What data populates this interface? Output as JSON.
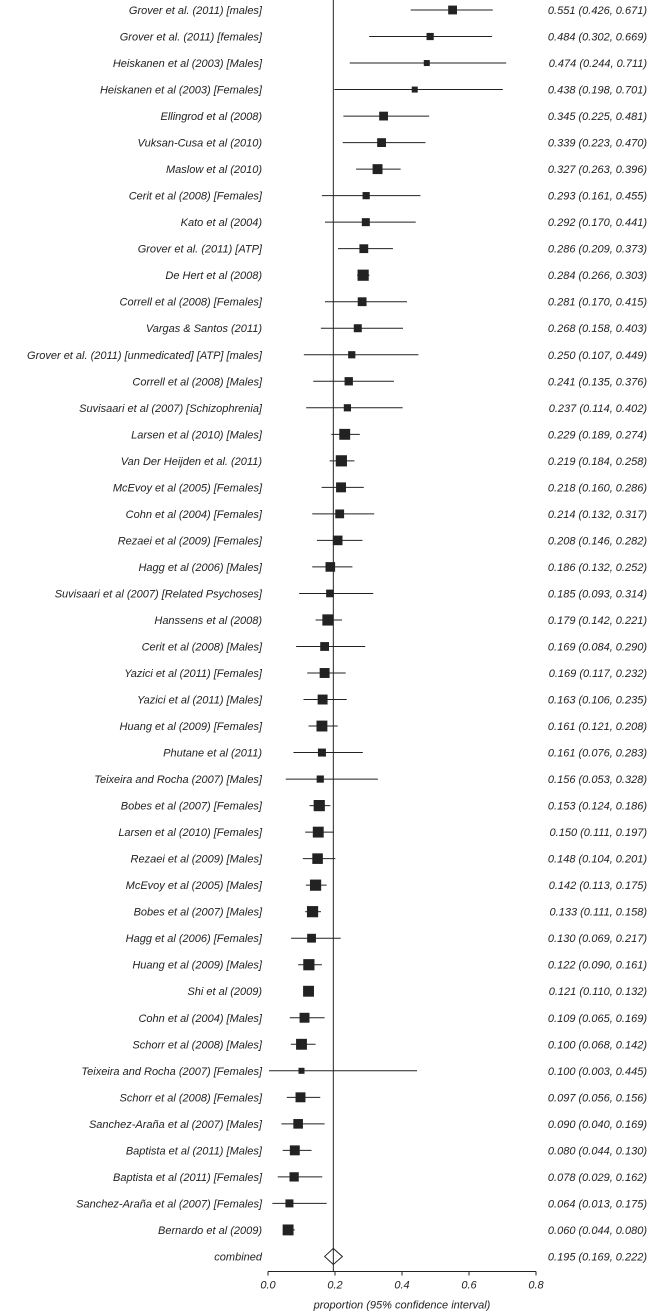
{
  "chart_data": {
    "type": "forest",
    "xlabel": "proportion (95% confidence interval)",
    "xlim": [
      0.0,
      0.8
    ],
    "xticks": [
      "0.0",
      "0.2",
      "0.4",
      "0.6",
      "0.8"
    ],
    "reference_line": 0.195,
    "grid": false,
    "rows": [
      {
        "study": "Grover et al. (2011) [males]",
        "est": 0.551,
        "lo": 0.426,
        "hi": 0.671,
        "ci_text": "0.551 (0.426, 0.671)",
        "w": 0.55
      },
      {
        "study": "Grover et al. (2011) [females]",
        "est": 0.484,
        "lo": 0.302,
        "hi": 0.669,
        "ci_text": "0.484 (0.302, 0.669)",
        "w": 0.45
      },
      {
        "study": "Heiskanen et al (2003) [Males]",
        "est": 0.474,
        "lo": 0.244,
        "hi": 0.711,
        "ci_text": "0.474 (0.244, 0.711)",
        "w": 0.35
      },
      {
        "study": "Heiskanen et al (2003) [Females]",
        "est": 0.438,
        "lo": 0.198,
        "hi": 0.701,
        "ci_text": "0.438 (0.198, 0.701)",
        "w": 0.33
      },
      {
        "study": "Ellingrod et al (2008)",
        "est": 0.345,
        "lo": 0.225,
        "hi": 0.481,
        "ci_text": "0.345 (0.225, 0.481)",
        "w": 0.55
      },
      {
        "study": "Vuksan-Cusa et al (2010)",
        "est": 0.339,
        "lo": 0.223,
        "hi": 0.47,
        "ci_text": "0.339 (0.223, 0.470)",
        "w": 0.55
      },
      {
        "study": "Maslow et al (2010)",
        "est": 0.327,
        "lo": 0.263,
        "hi": 0.396,
        "ci_text": "0.327 (0.263, 0.396)",
        "w": 0.62
      },
      {
        "study": "Cerit et al (2008) [Females]",
        "est": 0.293,
        "lo": 0.161,
        "hi": 0.455,
        "ci_text": "0.293 (0.161, 0.455)",
        "w": 0.45
      },
      {
        "study": "Kato et al (2004)",
        "est": 0.292,
        "lo": 0.17,
        "hi": 0.441,
        "ci_text": "0.292 (0.170, 0.441)",
        "w": 0.5
      },
      {
        "study": "Grover et al. (2011) [ATP]",
        "est": 0.286,
        "lo": 0.209,
        "hi": 0.373,
        "ci_text": "0.286 (0.209, 0.373)",
        "w": 0.55
      },
      {
        "study": "De Hert et al (2008)",
        "est": 0.284,
        "lo": 0.266,
        "hi": 0.303,
        "ci_text": "0.284 (0.266, 0.303)",
        "w": 0.7
      },
      {
        "study": "Correll  et al (2008) [Females]",
        "est": 0.281,
        "lo": 0.17,
        "hi": 0.415,
        "ci_text": "0.281 (0.170, 0.415)",
        "w": 0.55
      },
      {
        "study": "Vargas & Santos (2011)",
        "est": 0.268,
        "lo": 0.158,
        "hi": 0.403,
        "ci_text": "0.268 (0.158, 0.403)",
        "w": 0.5
      },
      {
        "study": "Grover et al. (2011) [unmedicated] [ATP] [males]",
        "est": 0.25,
        "lo": 0.107,
        "hi": 0.449,
        "ci_text": "0.250 (0.107, 0.449)",
        "w": 0.45
      },
      {
        "study": "Correll  et al (2008) [Males]",
        "est": 0.241,
        "lo": 0.135,
        "hi": 0.376,
        "ci_text": "0.241 (0.135, 0.376)",
        "w": 0.52
      },
      {
        "study": "Suvisaari et al (2007) [Schizophrenia]",
        "est": 0.237,
        "lo": 0.114,
        "hi": 0.402,
        "ci_text": "0.237 (0.114, 0.402)",
        "w": 0.45
      },
      {
        "study": "Larsen et al (2010) [Males]",
        "est": 0.229,
        "lo": 0.189,
        "hi": 0.274,
        "ci_text": "0.229 (0.189, 0.274)",
        "w": 0.68
      },
      {
        "study": "Van Der Heijden et al. (2011)",
        "est": 0.219,
        "lo": 0.184,
        "hi": 0.258,
        "ci_text": "0.219 (0.184, 0.258)",
        "w": 0.7
      },
      {
        "study": "McEvoy et al (2005) [Females]",
        "est": 0.218,
        "lo": 0.16,
        "hi": 0.286,
        "ci_text": "0.218 (0.160, 0.286)",
        "w": 0.62
      },
      {
        "study": "Cohn et al (2004) [Females]",
        "est": 0.214,
        "lo": 0.132,
        "hi": 0.317,
        "ci_text": "0.214 (0.132, 0.317)",
        "w": 0.55
      },
      {
        "study": "Rezaei et al (2009) [Females]",
        "est": 0.208,
        "lo": 0.146,
        "hi": 0.282,
        "ci_text": "0.208 (0.146, 0.282)",
        "w": 0.6
      },
      {
        "study": "Hagg et al (2006) [Males]",
        "est": 0.186,
        "lo": 0.132,
        "hi": 0.252,
        "ci_text": "0.186 (0.132, 0.252)",
        "w": 0.6
      },
      {
        "study": "Suvisaari et al (2007) [Related Psychoses]",
        "est": 0.185,
        "lo": 0.093,
        "hi": 0.314,
        "ci_text": "0.185 (0.093, 0.314)",
        "w": 0.48
      },
      {
        "study": "Hanssens et al (2008)",
        "est": 0.179,
        "lo": 0.142,
        "hi": 0.221,
        "ci_text": "0.179 (0.142, 0.221)",
        "w": 0.7
      },
      {
        "study": "Cerit et al (2008) [Males]",
        "est": 0.169,
        "lo": 0.084,
        "hi": 0.29,
        "ci_text": "0.169 (0.084, 0.290)",
        "w": 0.55
      },
      {
        "study": "Yazici et al (2011) [Females]",
        "est": 0.169,
        "lo": 0.117,
        "hi": 0.232,
        "ci_text": "0.169 (0.117, 0.232)",
        "w": 0.62
      },
      {
        "study": "Yazici et al (2011) [Males]",
        "est": 0.163,
        "lo": 0.106,
        "hi": 0.235,
        "ci_text": "0.163 (0.106, 0.235)",
        "w": 0.62
      },
      {
        "study": "Huang et al (2009) [Females]",
        "est": 0.161,
        "lo": 0.121,
        "hi": 0.208,
        "ci_text": "0.161 (0.121, 0.208)",
        "w": 0.68
      },
      {
        "study": "Phutane et al (2011)",
        "est": 0.161,
        "lo": 0.076,
        "hi": 0.283,
        "ci_text": "0.161 (0.076, 0.283)",
        "w": 0.5
      },
      {
        "study": "Teixeira and Rocha (2007) [Males]",
        "est": 0.156,
        "lo": 0.053,
        "hi": 0.328,
        "ci_text": "0.156 (0.053, 0.328)",
        "w": 0.45
      },
      {
        "study": "Bobes et al (2007) [Females]",
        "est": 0.153,
        "lo": 0.124,
        "hi": 0.186,
        "ci_text": "0.153 (0.124, 0.186)",
        "w": 0.7
      },
      {
        "study": "Larsen et al (2010) [Females]",
        "est": 0.15,
        "lo": 0.111,
        "hi": 0.197,
        "ci_text": "0.150 (0.111, 0.197)",
        "w": 0.68
      },
      {
        "study": "Rezaei et al (2009) [Males]",
        "est": 0.148,
        "lo": 0.104,
        "hi": 0.201,
        "ci_text": "0.148 (0.104, 0.201)",
        "w": 0.66
      },
      {
        "study": "McEvoy et al (2005) [Males]",
        "est": 0.142,
        "lo": 0.113,
        "hi": 0.175,
        "ci_text": "0.142 (0.113, 0.175)",
        "w": 0.7
      },
      {
        "study": "Bobes et al (2007) [Males]",
        "est": 0.133,
        "lo": 0.111,
        "hi": 0.158,
        "ci_text": "0.133 (0.111, 0.158)",
        "w": 0.7
      },
      {
        "study": "Hagg et al (2006) [Females]",
        "est": 0.13,
        "lo": 0.069,
        "hi": 0.217,
        "ci_text": "0.130 (0.069, 0.217)",
        "w": 0.55
      },
      {
        "study": "Huang et al (2009) [Males]",
        "est": 0.122,
        "lo": 0.09,
        "hi": 0.161,
        "ci_text": "0.122 (0.090, 0.161)",
        "w": 0.7
      },
      {
        "study": "Shi et al (2009)",
        "est": 0.121,
        "lo": 0.11,
        "hi": 0.132,
        "ci_text": "0.121 (0.110, 0.132)",
        "w": 0.68
      },
      {
        "study": "Cohn et al (2004) [Males]",
        "est": 0.109,
        "lo": 0.065,
        "hi": 0.169,
        "ci_text": "0.109 (0.065, 0.169)",
        "w": 0.62
      },
      {
        "study": "Schorr et al (2008) [Males]",
        "est": 0.1,
        "lo": 0.068,
        "hi": 0.142,
        "ci_text": "0.100 (0.068, 0.142)",
        "w": 0.68
      },
      {
        "study": "Teixeira and Rocha (2007) [Females]",
        "est": 0.1,
        "lo": 0.003,
        "hi": 0.445,
        "ci_text": "0.100 (0.003, 0.445)",
        "w": 0.3
      },
      {
        "study": "Schorr et al (2008) [Females]",
        "est": 0.097,
        "lo": 0.056,
        "hi": 0.156,
        "ci_text": "0.097 (0.056, 0.156)",
        "w": 0.62
      },
      {
        "study": "Sanchez-Araña et al (2007) [Males]",
        "est": 0.09,
        "lo": 0.04,
        "hi": 0.169,
        "ci_text": "0.090 (0.040, 0.169)",
        "w": 0.6
      },
      {
        "study": "Baptista et al (2011) [Males]",
        "est": 0.08,
        "lo": 0.044,
        "hi": 0.13,
        "ci_text": "0.080 (0.044, 0.130)",
        "w": 0.62
      },
      {
        "study": "Baptista et al (2011) [Females]",
        "est": 0.078,
        "lo": 0.029,
        "hi": 0.162,
        "ci_text": "0.078 (0.029, 0.162)",
        "w": 0.58
      },
      {
        "study": "Sanchez-Araña et al (2007) [Females]",
        "est": 0.064,
        "lo": 0.013,
        "hi": 0.175,
        "ci_text": "0.064 (0.013, 0.175)",
        "w": 0.5
      },
      {
        "study": "Bernardo et al (2009)",
        "est": 0.06,
        "lo": 0.044,
        "hi": 0.08,
        "ci_text": "0.060 (0.044, 0.080)",
        "w": 0.68
      }
    ],
    "combined": {
      "study": "combined",
      "est": 0.195,
      "lo": 0.169,
      "hi": 0.222,
      "ci_text": "0.195 (0.169, 0.222)"
    },
    "colors": {
      "marker": "#222222",
      "line": "#222222",
      "diamond_fill": "#ffffff"
    }
  }
}
